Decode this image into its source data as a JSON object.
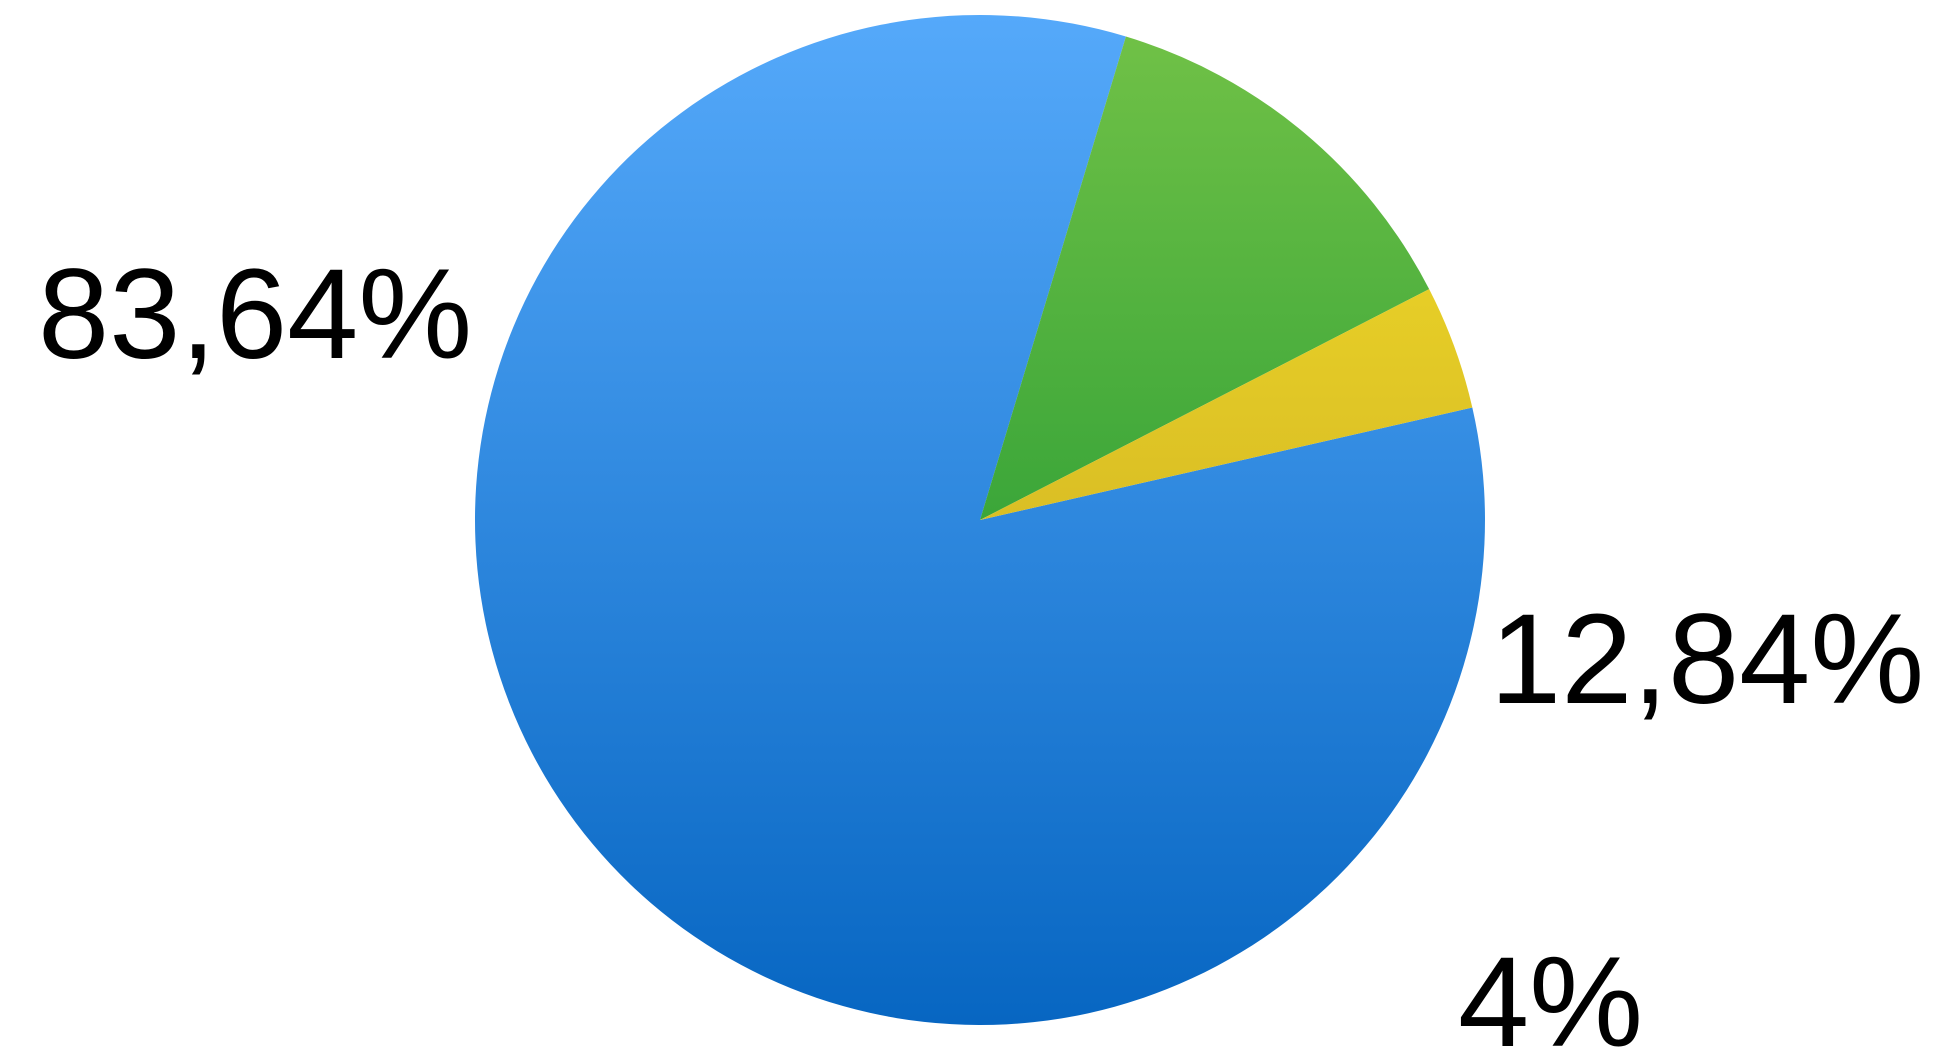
{
  "chart_data": {
    "type": "pie",
    "slices": [
      {
        "label": "83,64%",
        "value": 83.64,
        "color_top": "#55A9FA",
        "color_bottom": "#0766C2"
      },
      {
        "label": "12,84%",
        "value": 12.84,
        "color_top": "#72C247",
        "color_bottom": "#048A2B"
      },
      {
        "label": "4%",
        "value": 4,
        "color_top": "#F5E02A",
        "color_bottom": "#BF9D1F"
      }
    ],
    "legend": "none"
  }
}
